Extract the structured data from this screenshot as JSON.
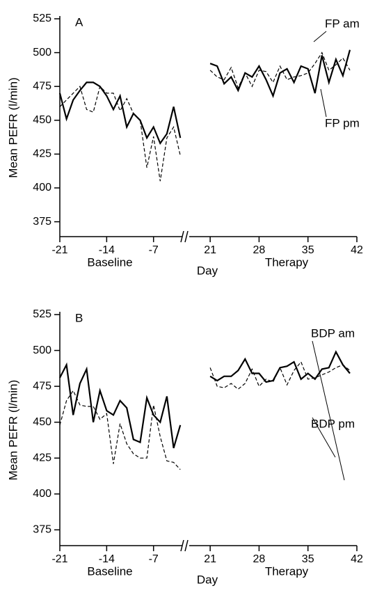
{
  "chart_data": [
    {
      "type": "line",
      "panel": "A",
      "ylabel": "Mean PEFR (l/min)",
      "xlabel": "Day",
      "ylim": [
        364,
        525
      ],
      "yticks": [
        375,
        400,
        425,
        450,
        475,
        500,
        525
      ],
      "x_segments": [
        {
          "label": "Baseline",
          "xlim": [
            -21,
            -2.5
          ],
          "xticks": [
            -21,
            -14,
            -7
          ]
        },
        {
          "label": "Therapy",
          "xlim": [
            18,
            42
          ],
          "xticks": [
            21,
            28,
            35,
            42
          ]
        }
      ],
      "x": [
        -21,
        -20,
        -19,
        -18,
        -17,
        -16,
        -15,
        -14,
        -13,
        -12,
        -11,
        -10,
        -9,
        -8,
        -7,
        -6,
        -5,
        -4,
        -3,
        null,
        21,
        22,
        23,
        24,
        25,
        26,
        27,
        28,
        29,
        30,
        31,
        32,
        33,
        34,
        35,
        36,
        37,
        38,
        39,
        40,
        41
      ],
      "series": [
        {
          "name": "FP am",
          "color": "#000000",
          "dash": "solid",
          "values": [
            470,
            451,
            465,
            472,
            478,
            478,
            475,
            468,
            458,
            468,
            445,
            455,
            450,
            437,
            445,
            433,
            440,
            460,
            437,
            null,
            492,
            490,
            477,
            482,
            472,
            485,
            482,
            490,
            480,
            468,
            485,
            488,
            478,
            490,
            488,
            470,
            498,
            478,
            495,
            483,
            502
          ]
        },
        {
          "name": "FP pm",
          "color": "#000000",
          "dash": "dashed",
          "values": [
            460,
            465,
            470,
            475,
            458,
            456,
            475,
            470,
            470,
            457,
            466,
            455,
            450,
            415,
            438,
            405,
            437,
            445,
            424,
            null,
            487,
            482,
            480,
            489,
            474,
            485,
            475,
            487,
            486,
            478,
            490,
            480,
            482,
            483,
            485,
            492,
            500,
            487,
            491,
            496,
            487
          ]
        }
      ]
    },
    {
      "type": "line",
      "panel": "B",
      "ylabel": "Mean PEFR (l/min)",
      "xlabel": "Day",
      "ylim": [
        364,
        525
      ],
      "yticks": [
        375,
        400,
        425,
        450,
        475,
        500,
        525
      ],
      "x_segments": [
        {
          "label": "Baseline",
          "xlim": [
            -21,
            -2.5
          ],
          "xticks": [
            -21,
            -14,
            -7
          ]
        },
        {
          "label": "Therapy",
          "xlim": [
            18,
            42
          ],
          "xticks": [
            21,
            28,
            35,
            42
          ]
        }
      ],
      "x": [
        -21,
        -20,
        -19,
        -18,
        -17,
        -16,
        -15,
        -14,
        -13,
        -12,
        -11,
        -10,
        -9,
        -8,
        -7,
        -6,
        -5,
        -4,
        -3,
        null,
        21,
        22,
        23,
        24,
        25,
        26,
        27,
        28,
        29,
        30,
        31,
        32,
        33,
        34,
        35,
        36,
        37,
        38,
        39,
        40,
        41
      ],
      "series": [
        {
          "name": "BDP am",
          "color": "#000000",
          "dash": "solid",
          "values": [
            481,
            490,
            455,
            477,
            487,
            450,
            472,
            458,
            455,
            465,
            460,
            438,
            436,
            467,
            455,
            450,
            468,
            432,
            448,
            null,
            482,
            479,
            482,
            482,
            486,
            494,
            484,
            484,
            478,
            479,
            488,
            489,
            492,
            480,
            484,
            480,
            487,
            488,
            499,
            490,
            484
          ]
        },
        {
          "name": "BDP pm",
          "color": "#000000",
          "dash": "dashed",
          "values": [
            448,
            465,
            472,
            462,
            461,
            461,
            452,
            456,
            421,
            449,
            435,
            428,
            425,
            425,
            462,
            440,
            423,
            422,
            417,
            null,
            488,
            475,
            474,
            477,
            473,
            477,
            487,
            475,
            480,
            478,
            488,
            476,
            486,
            492,
            480,
            481,
            483,
            485,
            488,
            490,
            486
          ]
        }
      ]
    }
  ]
}
